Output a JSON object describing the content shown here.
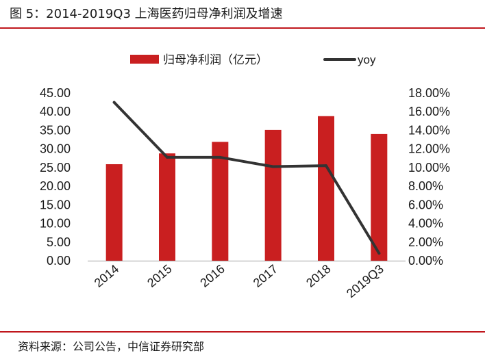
{
  "figure": {
    "title": "图 5：2014-2019Q3 上海医药归母净利润及增速",
    "source": "资料来源：公司公告，中信证券研究部"
  },
  "colors": {
    "bar": "#c91f20",
    "line": "#333333",
    "rule": "#c0161c"
  },
  "chart_data": {
    "type": "bar",
    "categories": [
      "2014",
      "2015",
      "2016",
      "2017",
      "2018",
      "2019Q3"
    ],
    "series": [
      {
        "name": "归母净利润（亿元）",
        "type": "bar",
        "axis": "left",
        "values": [
          25.9,
          28.8,
          31.9,
          35.1,
          38.8,
          34.0
        ]
      },
      {
        "name": "yoy",
        "type": "line",
        "axis": "right",
        "values": [
          17.0,
          11.1,
          11.1,
          10.1,
          10.2,
          0.8
        ]
      }
    ],
    "y_left": {
      "min": 0,
      "max": 45,
      "step": 5,
      "tick_labels": [
        "0.00",
        "5.00",
        "10.00",
        "15.00",
        "20.00",
        "25.00",
        "30.00",
        "35.00",
        "40.00",
        "45.00"
      ]
    },
    "y_right": {
      "min": 0,
      "max": 18,
      "step": 2,
      "tick_labels": [
        "0.00%",
        "2.00%",
        "4.00%",
        "6.00%",
        "8.00%",
        "10.00%",
        "12.00%",
        "14.00%",
        "16.00%",
        "18.00%"
      ]
    },
    "grid": false,
    "legend_position": "top"
  }
}
